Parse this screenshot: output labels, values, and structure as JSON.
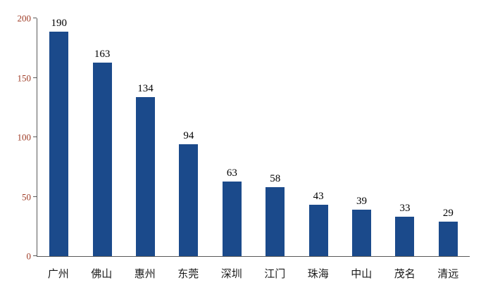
{
  "chart_data": {
    "type": "bar",
    "title": "",
    "categories": [
      "广州",
      "佛山",
      "惠州",
      "东莞",
      "深圳",
      "江门",
      "珠海",
      "中山",
      "茂名",
      "清远"
    ],
    "values": [
      190,
      163,
      134,
      94,
      63,
      58,
      43,
      39,
      33,
      29
    ],
    "y_ticks": [
      0,
      50,
      100,
      150,
      200
    ],
    "ylim": [
      0,
      200
    ],
    "xlabel": "",
    "ylabel": "",
    "grid": false,
    "legend": "none",
    "bar_color": "#1b4a8b",
    "value_label_color": "#000000",
    "y_tick_color": "#9e3b25",
    "x_tick_color": "#1a1a1a",
    "axis_line_color": "#595959"
  }
}
